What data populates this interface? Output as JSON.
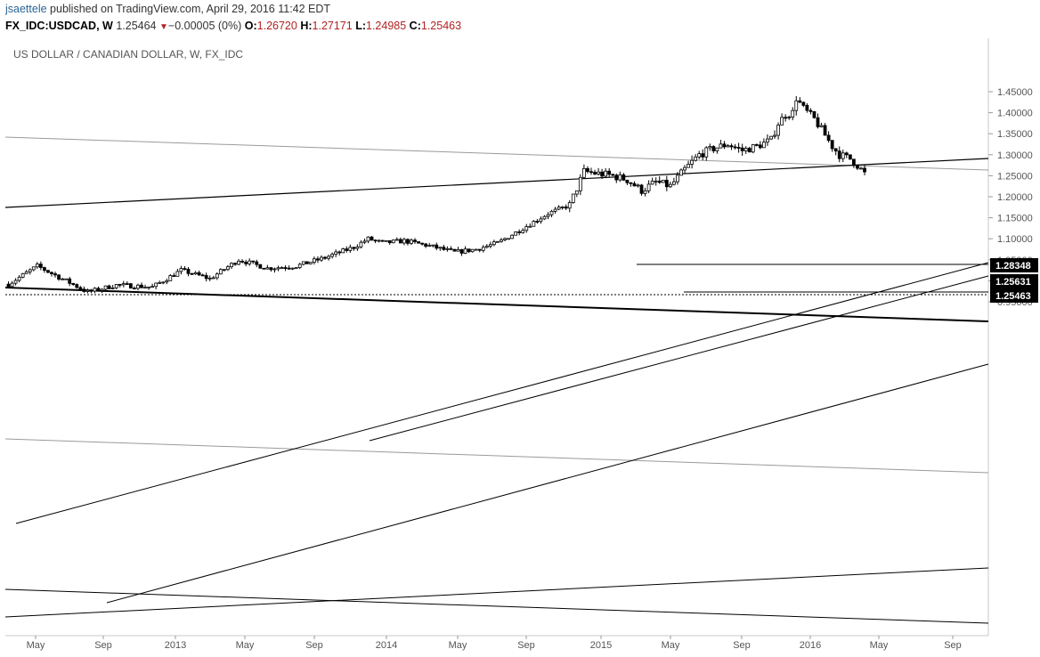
{
  "header": {
    "author": "jsaettele",
    "published": "published on TradingView.com, April 29, 2016 11:42 EDT",
    "symbol": "FX_IDC:USDCAD, W",
    "last": "1.25464",
    "change": "−0.00005 (0%)",
    "o_label": "O:",
    "o_value": "1.26720",
    "h_label": "H:",
    "h_value": "1.27171",
    "l_label": "L:",
    "l_value": "1.24985",
    "c_label": "C:",
    "c_value": "1.25463",
    "change_icon": "triangle-down-icon"
  },
  "colors": {
    "up_candle": "#ffffff",
    "down_candle": "#000000",
    "line": "#000000",
    "gray_line": "#9a9a9a",
    "label_bg": "#000000",
    "label_text": "#ffffff",
    "author": "#2a6496",
    "change_down": "#b22222"
  },
  "chart_data": {
    "type": "candlestick",
    "title": "US DOLLAR / CANADIAN DOLLAR, W, FX_IDC",
    "xlabel": "",
    "ylabel": "",
    "ylim": [
      0.92,
      1.48
    ],
    "y_ticks": [
      "1.45000",
      "1.40000",
      "1.35000",
      "1.30000",
      "1.25000",
      "1.20000",
      "1.15000",
      "1.10000",
      "1.05000",
      "1.00000",
      "0.95000"
    ],
    "x_ticks": [
      "May",
      "Sep",
      "2013",
      "May",
      "Sep",
      "2014",
      "May",
      "Sep",
      "2015",
      "May",
      "Sep",
      "2016",
      "May",
      "Sep"
    ],
    "price_labels": [
      "1.28348",
      "1.25631",
      "1.25463"
    ],
    "grid": false,
    "anchors": [
      {
        "week": 0,
        "price": 0.992
      },
      {
        "week": 8,
        "price": 1.035
      },
      {
        "week": 16,
        "price": 1.0
      },
      {
        "week": 22,
        "price": 0.973
      },
      {
        "week": 30,
        "price": 0.99
      },
      {
        "week": 40,
        "price": 0.985
      },
      {
        "week": 48,
        "price": 1.025
      },
      {
        "week": 56,
        "price": 1.005
      },
      {
        "week": 64,
        "price": 1.05
      },
      {
        "week": 72,
        "price": 1.03
      },
      {
        "week": 80,
        "price": 1.035
      },
      {
        "week": 88,
        "price": 1.055
      },
      {
        "week": 96,
        "price": 1.08
      },
      {
        "week": 100,
        "price": 1.1
      },
      {
        "week": 104,
        "price": 1.09
      },
      {
        "week": 110,
        "price": 1.095
      },
      {
        "week": 116,
        "price": 1.085
      },
      {
        "week": 124,
        "price": 1.068
      },
      {
        "week": 130,
        "price": 1.075
      },
      {
        "week": 136,
        "price": 1.09
      },
      {
        "week": 144,
        "price": 1.13
      },
      {
        "week": 150,
        "price": 1.16
      },
      {
        "week": 156,
        "price": 1.18
      },
      {
        "week": 160,
        "price": 1.26
      },
      {
        "week": 164,
        "price": 1.255
      },
      {
        "week": 168,
        "price": 1.25
      },
      {
        "week": 172,
        "price": 1.24
      },
      {
        "week": 176,
        "price": 1.215
      },
      {
        "week": 180,
        "price": 1.235
      },
      {
        "week": 184,
        "price": 1.225
      },
      {
        "week": 188,
        "price": 1.265
      },
      {
        "week": 192,
        "price": 1.3
      },
      {
        "week": 196,
        "price": 1.315
      },
      {
        "week": 200,
        "price": 1.325
      },
      {
        "week": 204,
        "price": 1.31
      },
      {
        "week": 208,
        "price": 1.32
      },
      {
        "week": 212,
        "price": 1.335
      },
      {
        "week": 214,
        "price": 1.375
      },
      {
        "week": 216,
        "price": 1.395
      },
      {
        "week": 218,
        "price": 1.4
      },
      {
        "week": 219,
        "price": 1.435
      },
      {
        "week": 221,
        "price": 1.41
      },
      {
        "week": 224,
        "price": 1.385
      },
      {
        "week": 226,
        "price": 1.36
      },
      {
        "week": 229,
        "price": 1.32
      },
      {
        "week": 231,
        "price": 1.3
      },
      {
        "week": 234,
        "price": 1.29
      },
      {
        "week": 236,
        "price": 1.275
      },
      {
        "week": 238,
        "price": 1.255
      }
    ]
  }
}
